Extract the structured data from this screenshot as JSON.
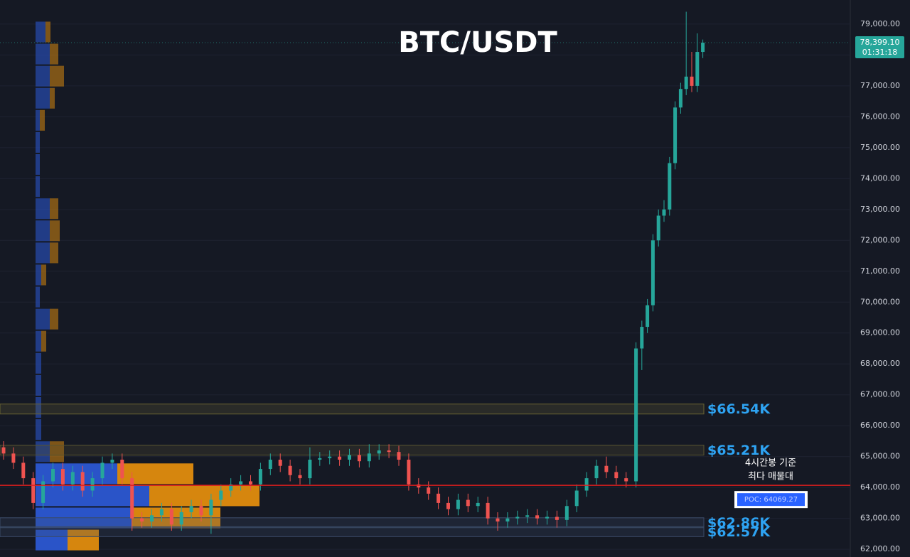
{
  "chart_data": {
    "type": "candlestick",
    "title": "BTC/USDT",
    "open": [
      65300,
      65100,
      64800,
      64300,
      63500,
      64200,
      64600,
      64100,
      64500,
      63900,
      64300,
      64800,
      64900,
      64300,
      63000,
      62900,
      63100,
      63300,
      62800,
      63200,
      63400,
      63100,
      63600,
      63900,
      64100,
      64200,
      64100,
      64600,
      64900,
      64700,
      64400,
      64300,
      64900,
      64950,
      65000,
      64900,
      65050,
      64850,
      65100,
      65200,
      65150,
      64900,
      64100,
      64000,
      63800,
      63500,
      63300,
      63600,
      63400,
      63500,
      63000,
      62900,
      63000,
      63050,
      63100,
      63000,
      63050,
      62950,
      63400,
      63900,
      64300,
      64700,
      64500,
      64300,
      64200,
      68500,
      69200,
      69900,
      72000,
      72800,
      73000,
      74500,
      76300,
      76900,
      77300,
      77000,
      78100
    ],
    "high": [
      65500,
      65300,
      65000,
      64500,
      64400,
      64800,
      64800,
      64700,
      64700,
      64500,
      65000,
      65100,
      65100,
      64500,
      63200,
      63300,
      63500,
      63500,
      63400,
      63600,
      63600,
      63800,
      64100,
      64300,
      64400,
      64400,
      64800,
      65100,
      65100,
      64900,
      64600,
      65300,
      65150,
      65200,
      65200,
      65250,
      65250,
      65400,
      65400,
      65400,
      65350,
      65100,
      64300,
      64200,
      64000,
      63700,
      63800,
      63800,
      63700,
      63700,
      63200,
      63200,
      63250,
      63300,
      63300,
      63250,
      63250,
      63600,
      64100,
      64500,
      64900,
      65000,
      64700,
      64500,
      68700,
      69400,
      70100,
      72200,
      73000,
      73300,
      74700,
      76500,
      77100,
      79400,
      78100,
      78700,
      78500
    ],
    "low": [
      64900,
      64600,
      64100,
      63300,
      63300,
      64000,
      63900,
      63900,
      63700,
      63700,
      64100,
      64600,
      64100,
      62600,
      62700,
      62700,
      62900,
      62600,
      62600,
      63000,
      62900,
      62500,
      63400,
      63700,
      63900,
      63900,
      63900,
      64400,
      64500,
      64200,
      64100,
      64100,
      64700,
      64750,
      64700,
      64700,
      64650,
      64650,
      64900,
      64950,
      64700,
      63900,
      63800,
      63600,
      63300,
      63100,
      63100,
      63200,
      63200,
      62800,
      62600,
      62700,
      62800,
      62850,
      62800,
      62800,
      62700,
      62750,
      63200,
      63700,
      64100,
      64300,
      64100,
      64000,
      64000,
      67800,
      69000,
      69700,
      71800,
      72600,
      72800,
      74300,
      76100,
      76700,
      76800,
      76800,
      77900
    ],
    "close": [
      65100,
      64800,
      64300,
      63500,
      64200,
      64600,
      64100,
      64500,
      63900,
      64300,
      64800,
      64900,
      64300,
      63000,
      62900,
      63100,
      63300,
      62800,
      63200,
      63400,
      63100,
      63600,
      63900,
      64100,
      64200,
      64100,
      64600,
      64900,
      64700,
      64400,
      64300,
      64900,
      64950,
      65000,
      64900,
      65050,
      64850,
      65100,
      65200,
      65150,
      64900,
      64100,
      64000,
      63800,
      63500,
      63300,
      63600,
      63400,
      63500,
      63000,
      62900,
      63000,
      63050,
      63100,
      63000,
      63050,
      62950,
      63400,
      63900,
      64300,
      64700,
      64500,
      64300,
      64200,
      68500,
      69200,
      69900,
      72000,
      72800,
      73000,
      74500,
      76300,
      76900,
      77300,
      77000,
      78100,
      78399.1
    ],
    "up_color": "#26a69a",
    "down_color": "#ef5350",
    "ylim": [
      61750,
      79780
    ],
    "yticks": [
      {
        "value": 62000,
        "label": "62,000.00"
      },
      {
        "value": 63000,
        "label": "63,000.00"
      },
      {
        "value": 64000,
        "label": "64,000.00"
      },
      {
        "value": 65000,
        "label": "65,000.00"
      },
      {
        "value": 66000,
        "label": "66,000.00"
      },
      {
        "value": 67000,
        "label": "67,000.00"
      },
      {
        "value": 68000,
        "label": "68,000.00"
      },
      {
        "value": 69000,
        "label": "69,000.00"
      },
      {
        "value": 70000,
        "label": "70,000.00"
      },
      {
        "value": 71000,
        "label": "71,000.00"
      },
      {
        "value": 72000,
        "label": "72,000.00"
      },
      {
        "value": 73000,
        "label": "73,000.00"
      },
      {
        "value": 74000,
        "label": "74,000.00"
      },
      {
        "value": 75000,
        "label": "75,000.00"
      },
      {
        "value": 76000,
        "label": "76,000.00"
      },
      {
        "value": 77000,
        "label": "77,000.00"
      },
      {
        "value": 78000,
        "label": "78,000.00"
      },
      {
        "value": 79000,
        "label": "79,000.00"
      }
    ],
    "last_price": {
      "value": 78399.1,
      "label": "78,399.10"
    },
    "countdown": "01:31:18",
    "levels": [
      {
        "value": 66540,
        "label": "$66.54K",
        "color": "#6b6532"
      },
      {
        "value": 65210,
        "label": "$65.21K",
        "color": "#5a5530"
      },
      {
        "value": 62860,
        "label": "$62.86K",
        "color": "#3a4a66"
      },
      {
        "value": 62570,
        "label": "$62.57K",
        "color": "#3a4a66"
      }
    ],
    "poc": {
      "value": 64069.27,
      "label": "POC: 64069.27",
      "color": "#e01e1e"
    },
    "annotation": [
      "4시간봉 기준",
      "최다 매물대"
    ],
    "volume_profile": {
      "prices": [
        62300,
        63015,
        63730,
        64445,
        65160,
        65875,
        66590,
        67305,
        68020,
        68735,
        69450,
        70165,
        70880,
        71595,
        72310,
        73025,
        73740,
        74455,
        75170,
        75885,
        76600,
        77315,
        78030,
        78745
      ],
      "buy_volume": [
        45,
        135,
        160,
        115,
        20,
        8,
        8,
        8,
        8,
        8,
        20,
        6,
        8,
        20,
        20,
        20,
        6,
        6,
        6,
        6,
        20,
        20,
        20,
        14
      ],
      "sell_volume": [
        44,
        125,
        155,
        107,
        20,
        0,
        0,
        0,
        0,
        7,
        12,
        0,
        7,
        12,
        14,
        12,
        0,
        0,
        0,
        7,
        7,
        20,
        12,
        7
      ],
      "buy_color": "#2a54c8",
      "sell_color": "#d6860e"
    }
  }
}
